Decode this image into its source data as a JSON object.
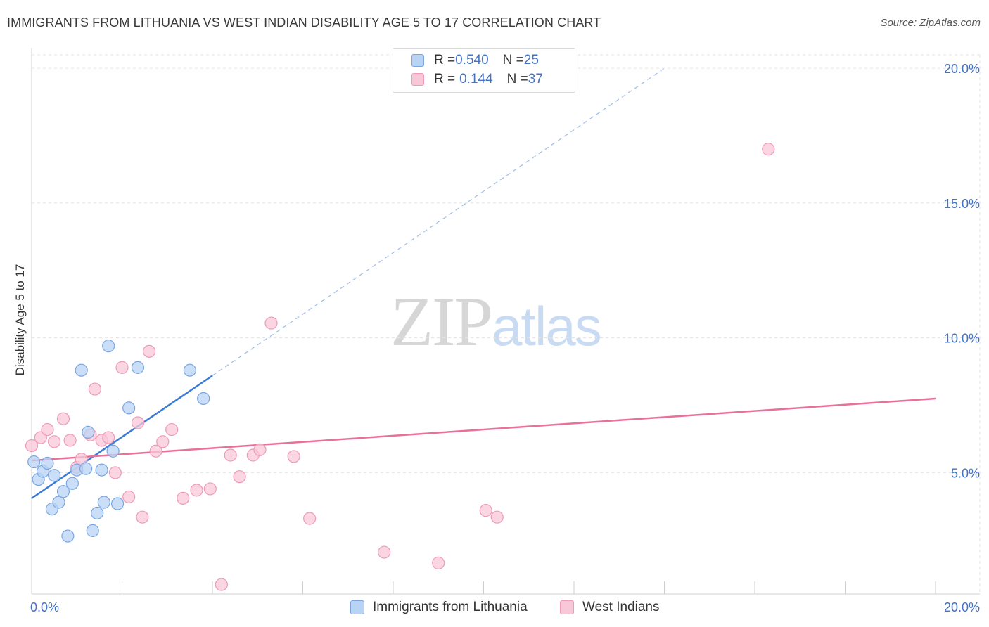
{
  "header": {
    "title": "IMMIGRANTS FROM LITHUANIA VS WEST INDIAN DISABILITY AGE 5 TO 17 CORRELATION CHART",
    "source": "Source: ZipAtlas.com"
  },
  "watermark": {
    "zip": "ZIP",
    "atlas": "atlas"
  },
  "legend": {
    "rows": [
      {
        "r_label": "R = ",
        "r_value": "0.540",
        "n_label": "N = ",
        "n_value": "25"
      },
      {
        "r_label": "R = ",
        "r_value": "0.144",
        "n_label": "N = ",
        "n_value": "37"
      }
    ]
  },
  "chart_data": {
    "type": "scatter",
    "title": "IMMIGRANTS FROM LITHUANIA VS WEST INDIAN DISABILITY AGE 5 TO 17 CORRELATION CHART",
    "xlabel": "",
    "ylabel": "Disability Age 5 to 17",
    "xlim": [
      0,
      20
    ],
    "ylim": [
      0.5,
      20.5
    ],
    "x_tick_labels": [
      "0.0%",
      "20.0%"
    ],
    "y_ticks": [
      5,
      10,
      15,
      20
    ],
    "y_tick_labels": [
      "5.0%",
      "10.0%",
      "15.0%",
      "20.0%"
    ],
    "grid": true,
    "legend_position": "top-center",
    "colors": {
      "lithuania_fill": "#b9d3f5",
      "lithuania_stroke": "#7aa6e0",
      "lithuania_line": "#3a7bd5",
      "west_fill": "#f9c8d8",
      "west_stroke": "#ef9ab7",
      "west_line": "#e8709a"
    },
    "series": [
      {
        "name": "Immigrants from Lithuania",
        "points": [
          [
            0.05,
            5.4
          ],
          [
            0.15,
            4.75
          ],
          [
            0.25,
            5.05
          ],
          [
            0.35,
            5.35
          ],
          [
            0.45,
            3.65
          ],
          [
            0.5,
            4.9
          ],
          [
            0.6,
            3.9
          ],
          [
            0.7,
            4.3
          ],
          [
            0.8,
            2.65
          ],
          [
            0.9,
            4.6
          ],
          [
            1.0,
            5.1
          ],
          [
            1.1,
            8.8
          ],
          [
            1.2,
            5.15
          ],
          [
            1.25,
            6.5
          ],
          [
            1.35,
            2.85
          ],
          [
            1.45,
            3.5
          ],
          [
            1.55,
            5.1
          ],
          [
            1.6,
            3.9
          ],
          [
            1.7,
            9.7
          ],
          [
            1.8,
            5.8
          ],
          [
            1.9,
            3.85
          ],
          [
            2.15,
            7.4
          ],
          [
            2.35,
            8.9
          ],
          [
            3.5,
            8.8
          ],
          [
            3.8,
            7.75
          ]
        ],
        "trend": {
          "x": [
            0.0,
            4.0
          ],
          "y": [
            4.05,
            8.6
          ],
          "dashed_extension": {
            "x": [
              4.0,
              14.0
            ],
            "y": [
              8.6,
              20.0
            ]
          }
        }
      },
      {
        "name": "West Indians",
        "points": [
          [
            0.0,
            6.0
          ],
          [
            0.2,
            6.3
          ],
          [
            0.35,
            6.6
          ],
          [
            0.5,
            6.15
          ],
          [
            0.7,
            7.0
          ],
          [
            0.85,
            6.2
          ],
          [
            1.0,
            5.2
          ],
          [
            1.1,
            5.5
          ],
          [
            1.3,
            6.4
          ],
          [
            1.4,
            8.1
          ],
          [
            1.55,
            6.2
          ],
          [
            1.7,
            6.3
          ],
          [
            1.85,
            5.0
          ],
          [
            2.0,
            8.9
          ],
          [
            2.15,
            4.1
          ],
          [
            2.35,
            6.85
          ],
          [
            2.45,
            3.35
          ],
          [
            2.6,
            9.5
          ],
          [
            2.75,
            5.8
          ],
          [
            2.9,
            6.15
          ],
          [
            3.1,
            6.6
          ],
          [
            3.35,
            4.05
          ],
          [
            3.65,
            4.35
          ],
          [
            3.95,
            4.4
          ],
          [
            4.2,
            0.85
          ],
          [
            4.4,
            5.65
          ],
          [
            4.6,
            4.85
          ],
          [
            4.9,
            5.65
          ],
          [
            5.05,
            5.85
          ],
          [
            5.3,
            10.55
          ],
          [
            5.8,
            5.6
          ],
          [
            6.15,
            3.3
          ],
          [
            7.8,
            2.05
          ],
          [
            9.0,
            1.65
          ],
          [
            10.05,
            3.6
          ],
          [
            10.3,
            3.35
          ],
          [
            16.3,
            17.0
          ]
        ],
        "trend": {
          "x": [
            0.0,
            20.0
          ],
          "y": [
            5.45,
            7.75
          ]
        }
      }
    ]
  }
}
